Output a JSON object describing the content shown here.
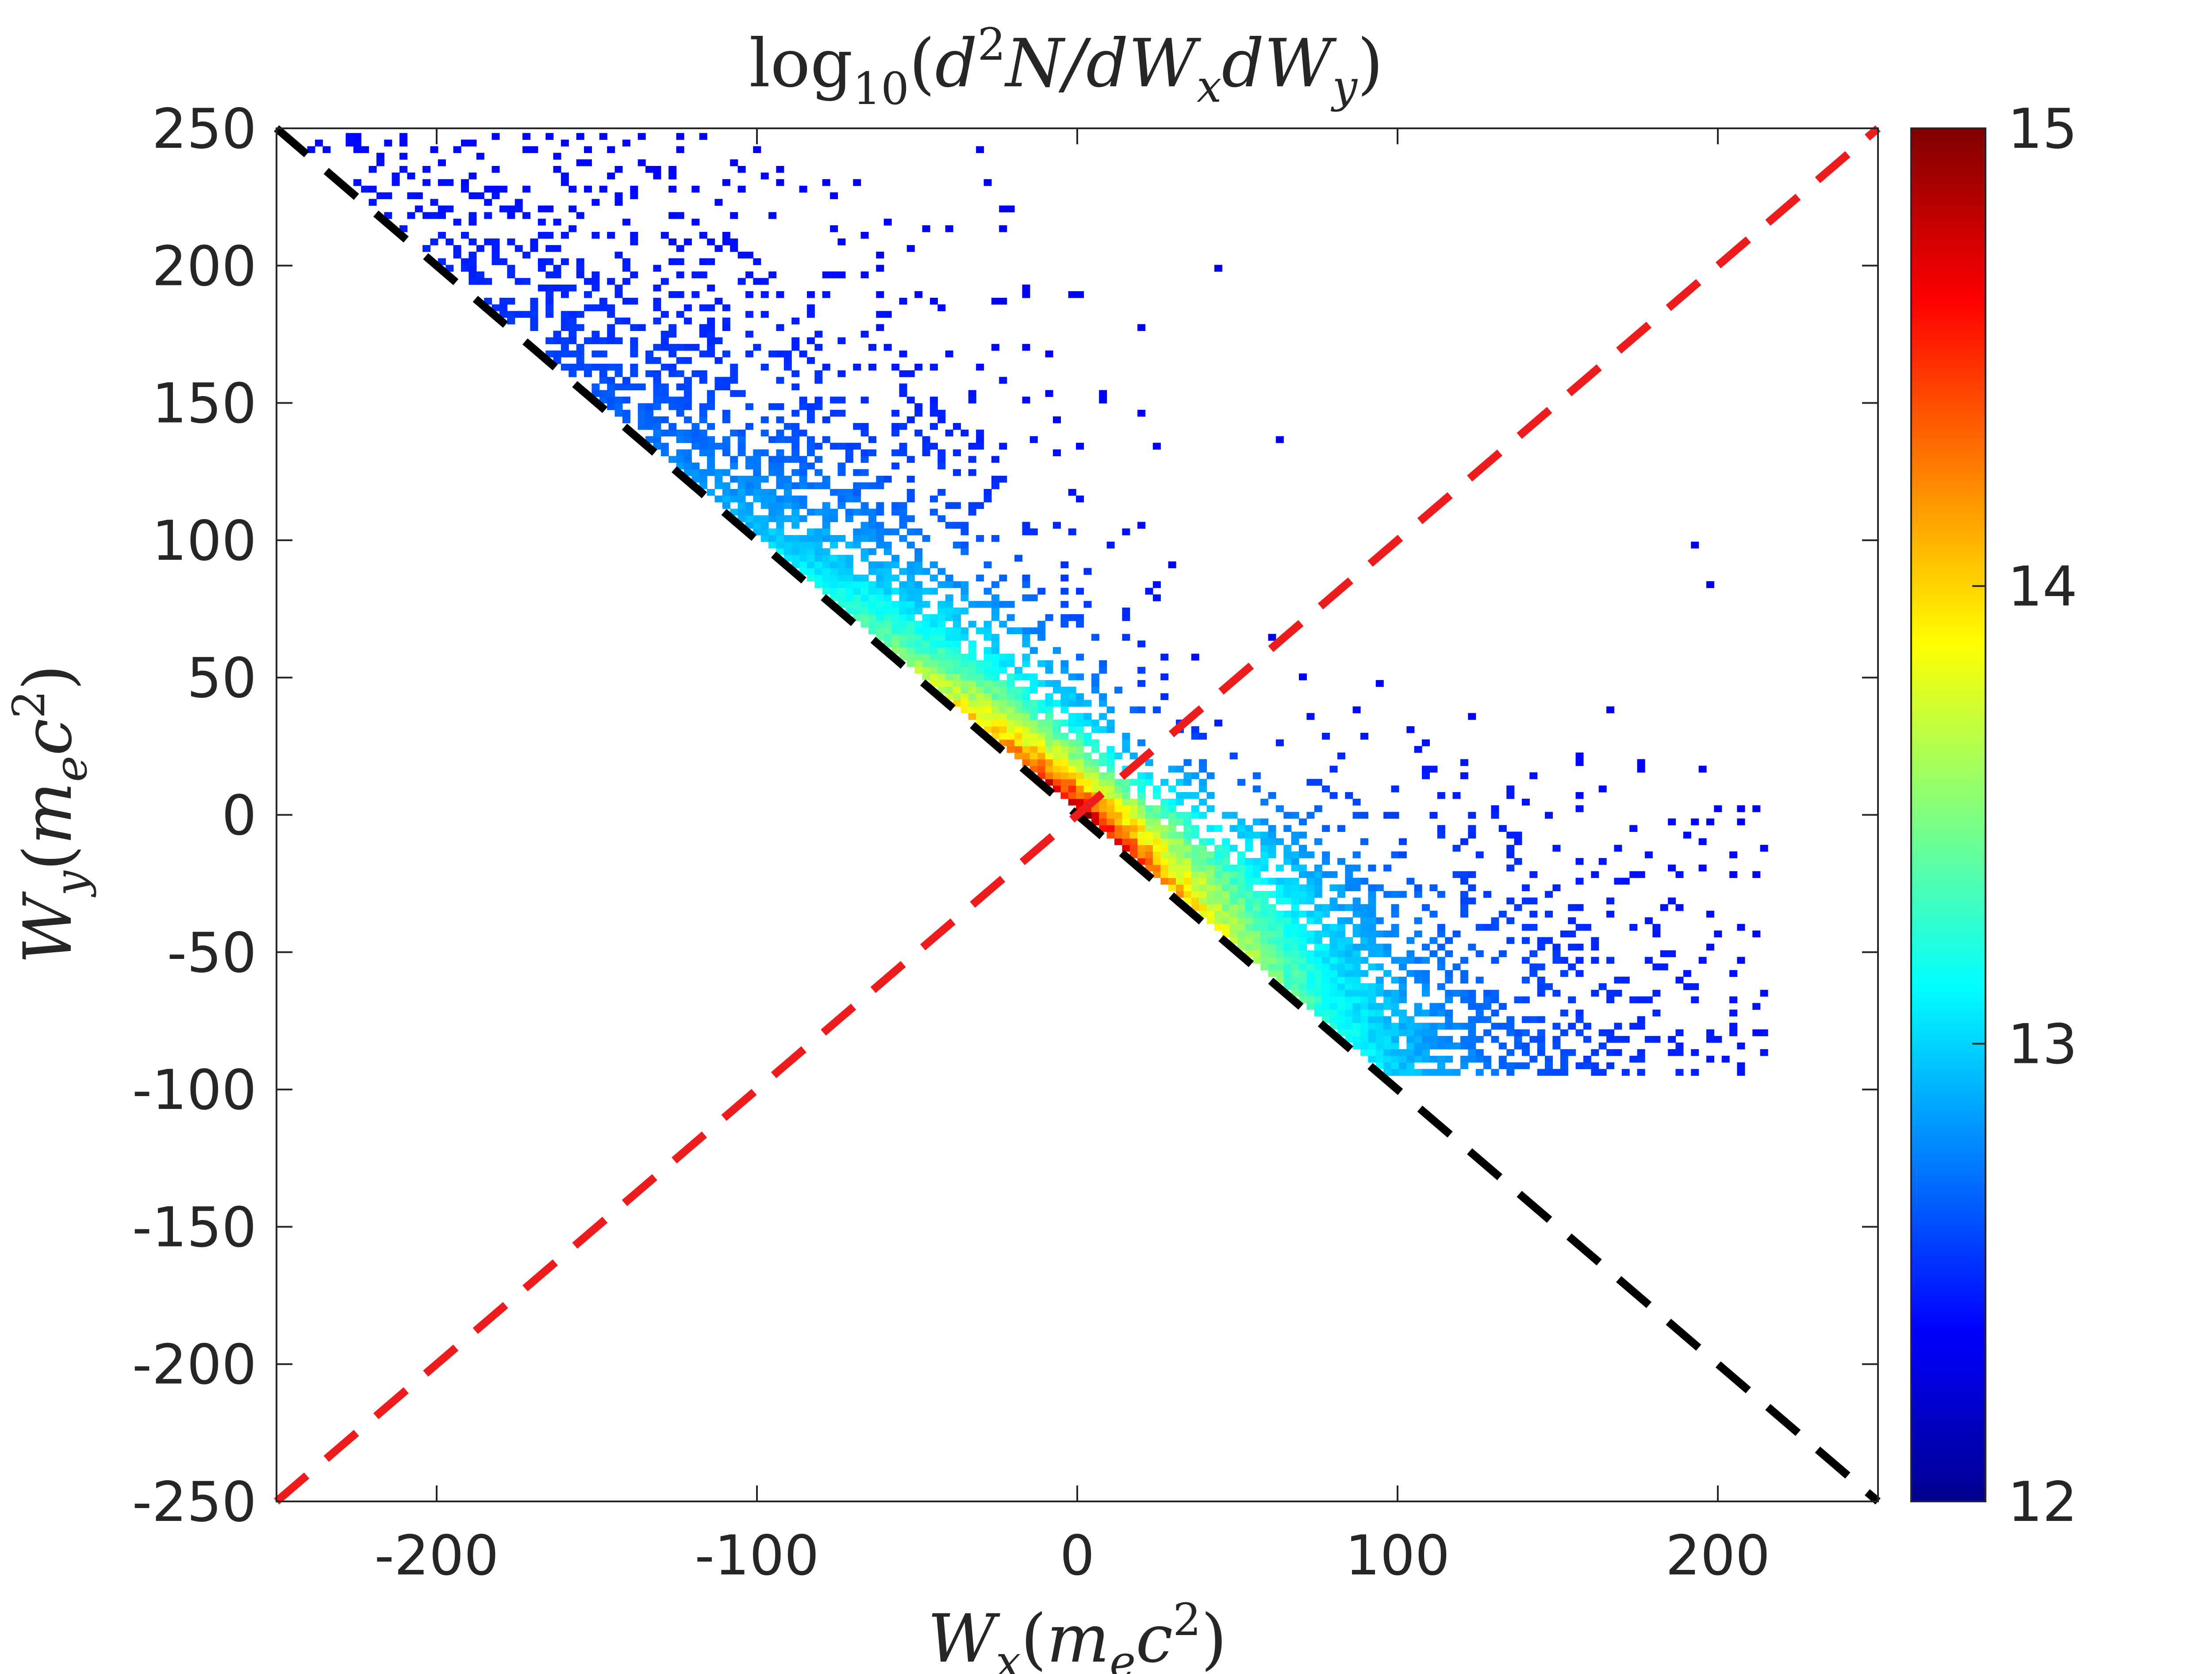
{
  "chart_data": {
    "type": "heatmap",
    "title": {
      "fn": "log",
      "fn_sub": "10",
      "open": "(",
      "d": "d",
      "d_sup": "2",
      "body": "N/dW",
      "sub_x": "x",
      "mid": "dW",
      "sub_y": "y",
      "close": ")"
    },
    "xlabel": {
      "main": "W",
      "sub": "x",
      "paren_open": "(",
      "m": "m",
      "m_sub": "e",
      "c": "c",
      "c_sup": "2",
      "paren_close": ")"
    },
    "ylabel": {
      "main": "W",
      "sub": "y",
      "paren_open": "(",
      "m": "m",
      "m_sub": "e",
      "c": "c",
      "c_sup": "2",
      "paren_close": ")"
    },
    "xlim": [
      -250,
      250
    ],
    "ylim": [
      -250,
      250
    ],
    "xticks": [
      -200,
      -100,
      0,
      100,
      200
    ],
    "xtick_labels": [
      "-200",
      "-100",
      "0",
      "100",
      "200"
    ],
    "yticks": [
      250,
      200,
      150,
      100,
      50,
      0,
      -50,
      -100,
      -150,
      -200,
      -250
    ],
    "ytick_labels": [
      "250",
      "200",
      "150",
      "100",
      "50",
      "0",
      "-50",
      "-100",
      "-150",
      "-200",
      "-250"
    ],
    "colorbar": {
      "range": [
        12,
        15
      ],
      "ticks": [
        15,
        14,
        13,
        12
      ],
      "tick_labels": [
        "15",
        "14",
        "13",
        "12"
      ],
      "colormap": "jet"
    },
    "reference_lines": [
      {
        "name": "Wx + Wy = 0",
        "from": [
          -250,
          250
        ],
        "to": [
          250,
          -250
        ],
        "color": "#000000",
        "style": "dashed"
      },
      {
        "name": "Wy = Wx",
        "from": [
          -250,
          -250
        ],
        "to": [
          250,
          250
        ],
        "color": "#ee1c1c",
        "style": "dashed"
      }
    ],
    "distribution": {
      "description_values": "density of log10 counts, concentrated near origin along line Wx+Wy=0",
      "peak": [
        0,
        0
      ],
      "peak_value": 15,
      "min_value": 12,
      "spread_along_diagonal_from": -250,
      "spread_along_diagonal_to": 215,
      "max_Wx": 215,
      "min_Wy": -95
    }
  }
}
